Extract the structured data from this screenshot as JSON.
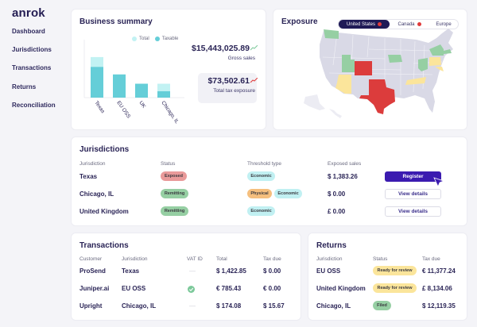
{
  "app": {
    "logo": "anrok"
  },
  "sidebar": {
    "items": [
      {
        "label": "Dashboard"
      },
      {
        "label": "Jurisdictions"
      },
      {
        "label": "Transactions"
      },
      {
        "label": "Returns"
      },
      {
        "label": "Reconciliation"
      }
    ]
  },
  "business_summary": {
    "title": "Business summary",
    "legend": {
      "total": "Total",
      "taxable": "Taxable"
    },
    "gross_sales": {
      "value": "$15,443,025.89",
      "label": "Gross sales",
      "trend_color": "#7cc99a"
    },
    "tax_exposure": {
      "value": "$73,502.61",
      "label": "Total tax exposure",
      "trend_color": "#e03b3b"
    }
  },
  "chart_data": {
    "type": "bar",
    "title": "",
    "xlabel": "",
    "ylabel": "",
    "categories": [
      "Texas",
      "EU OSS",
      "UK",
      "Chicago, IL"
    ],
    "series": [
      {
        "name": "Total",
        "color": "#c2f2f3",
        "values": [
          70,
          40,
          24,
          24
        ]
      },
      {
        "name": "Taxable",
        "color": "#65ced8",
        "values": [
          53,
          40,
          24,
          11
        ]
      }
    ],
    "ylim": [
      0,
      100
    ],
    "grid": false,
    "legend": "top-right"
  },
  "exposure": {
    "title": "Exposure",
    "tabs": [
      {
        "label": "United States",
        "active": true,
        "badge": true
      },
      {
        "label": "Canada",
        "active": false,
        "badge": true
      },
      {
        "label": "Europe",
        "active": false,
        "badge": false
      }
    ],
    "map_colors": {
      "base": "#d9d9e6",
      "remitting": "#96cfa3",
      "exposed": "#dc3c3c",
      "review": "#fbe59b"
    }
  },
  "jurisdictions": {
    "title": "Jurisdictions",
    "headers": [
      "Jurisdiction",
      "Status",
      "Threshold type",
      "Exposed sales"
    ],
    "rows": [
      {
        "name": "Texas",
        "status": "Exposed",
        "status_kind": "exposed",
        "thresholds": [
          "Economic"
        ],
        "sales": "$  1,383.26",
        "action": "Register"
      },
      {
        "name": "Chicago, IL",
        "status": "Remitting",
        "status_kind": "remitting",
        "thresholds": [
          "Physical",
          "Economic"
        ],
        "sales": "$ 0.00",
        "action": "View details"
      },
      {
        "name": "United Kingdom",
        "status": "Remitting",
        "status_kind": "remitting",
        "thresholds": [
          "Economic"
        ],
        "sales": "£ 0.00",
        "action": "View details"
      }
    ]
  },
  "transactions": {
    "title": "Transactions",
    "headers": [
      "Customer",
      "Jurisdiction",
      "VAT ID",
      "Total",
      "Tax due"
    ],
    "rows": [
      {
        "customer": "ProSend",
        "jurisdiction": "Texas",
        "vat": "—",
        "total": "$ 1,422.85",
        "tax_due": "$  0.00"
      },
      {
        "customer": "Juniper.ai",
        "jurisdiction": "EU OSS",
        "vat": "check",
        "total": "€ 785.43",
        "tax_due": "€  0.00"
      },
      {
        "customer": "Upright",
        "jurisdiction": "Chicago, IL",
        "vat": "—",
        "total": "$ 174.08",
        "tax_due": "$  15.67"
      }
    ]
  },
  "returns": {
    "title": "Returns",
    "headers": [
      "Jurisdiction",
      "Status",
      "Tax due"
    ],
    "rows": [
      {
        "jurisdiction": "EU OSS",
        "status": "Ready for review",
        "status_kind": "review",
        "tax_due": "€ 11,377.24"
      },
      {
        "jurisdiction": "United Kingdom",
        "status": "Ready for review",
        "status_kind": "review",
        "tax_due": "£ 8,134.06"
      },
      {
        "jurisdiction": "Chicago, IL",
        "status": "Filed",
        "status_kind": "filed",
        "tax_due": "$ 12,119.35"
      }
    ]
  }
}
